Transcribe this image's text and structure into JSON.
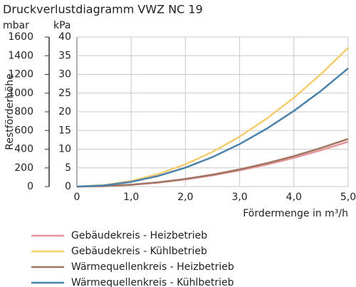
{
  "chart_data": {
    "type": "line",
    "title": "Druckverlustdiagramm VWZ NC 19",
    "y_label": "Restförderhöhe",
    "y_unit": "mbar",
    "y2_unit": "kPa",
    "x_label": "Fördermenge in m³/h",
    "x": [
      0,
      0.5,
      1,
      1.5,
      2,
      2.5,
      3,
      3.5,
      4,
      4.5,
      5
    ],
    "xlim": [
      0,
      5
    ],
    "xticks": [
      0,
      {
        "value": 1,
        "label": "1,0"
      },
      {
        "value": 2,
        "label": "2,0"
      },
      {
        "value": 3,
        "label": "3,0"
      },
      {
        "value": 4,
        "label": "4,0"
      },
      {
        "value": 5,
        "label": "5,0"
      }
    ],
    "ylim": [
      0,
      1600
    ],
    "yticks": [
      0,
      200,
      400,
      600,
      800,
      1000,
      1200,
      1400,
      1600
    ],
    "y2lim": [
      0,
      40
    ],
    "y2ticks": [
      0,
      5,
      10,
      15,
      20,
      25,
      30,
      35,
      40
    ],
    "grid": true,
    "series": [
      {
        "name": "Gebäudekreis - Heizbetrieb",
        "color": "#e8939a",
        "values": [
          0,
          4.8,
          19.2,
          43.2,
          76.8,
          120,
          172.8,
          235,
          307,
          389,
          480
        ]
      },
      {
        "name": "Gebäudekreis - Kühlbetrieb",
        "color": "#f5cd6e",
        "values": [
          0,
          14.9,
          59.4,
          133.7,
          237.8,
          371.5,
          535,
          728,
          951,
          1204,
          1486
        ]
      },
      {
        "name": "Wärmequellenkreis - Heizbetrieb",
        "color": "#9e7560",
        "values": [
          0,
          5.1,
          20.4,
          45.9,
          81.6,
          127.5,
          183.6,
          250,
          326,
          413,
          510
        ]
      },
      {
        "name": "Wärmequellenkreis - Kühlbetrieb",
        "color": "#4a82ad",
        "values": [
          0,
          12.7,
          50.6,
          113.9,
          202.4,
          316,
          455,
          620,
          810,
          1025,
          1265
        ]
      }
    ]
  }
}
